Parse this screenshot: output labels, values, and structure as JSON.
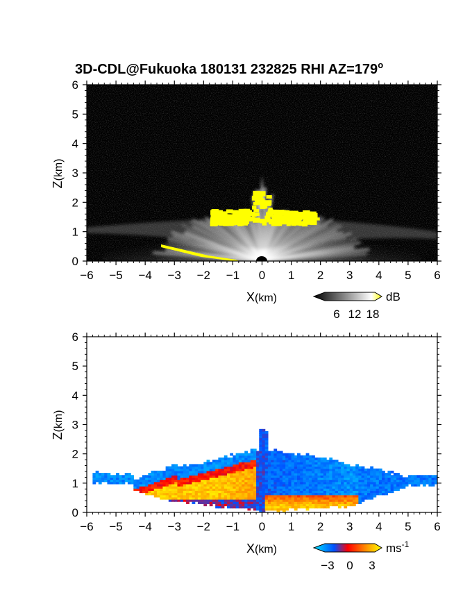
{
  "chart_data": [
    {
      "type": "heatmap",
      "title": "3D-CDL@Fukuoka 180131 232825 RHI AZ=179",
      "title_superscript": "o",
      "xlabel_main": "X",
      "xlabel_unit": "(km)",
      "ylabel_main": "Z",
      "ylabel_unit": "(km)",
      "xlim": [
        -6,
        6
      ],
      "ylim": [
        0,
        6
      ],
      "x_ticks": [
        "-6",
        "-5",
        "-4",
        "-3",
        "-2",
        "-1",
        "0",
        "1",
        "2",
        "3",
        "4",
        "5",
        "6"
      ],
      "y_ticks": [
        "0",
        "1",
        "2",
        "3",
        "4",
        "5",
        "6"
      ],
      "colorbar": {
        "unit": "dB",
        "ticks": [
          "6",
          "12",
          "18"
        ],
        "range": [
          0,
          20
        ],
        "colors": [
          "#000000",
          "#ffffff",
          "#ffff00"
        ]
      },
      "background_color": "#000000"
    },
    {
      "type": "heatmap",
      "xlabel_main": "X",
      "xlabel_unit": "(km)",
      "ylabel_main": "Z",
      "ylabel_unit": "(km)",
      "xlim": [
        -6,
        6
      ],
      "ylim": [
        0,
        6
      ],
      "x_ticks": [
        "-6",
        "-5",
        "-4",
        "-3",
        "-2",
        "-1",
        "0",
        "1",
        "2",
        "3",
        "4",
        "5",
        "6"
      ],
      "y_ticks": [
        "0",
        "1",
        "2",
        "3",
        "4",
        "5",
        "6"
      ],
      "colorbar": {
        "unit_main": "ms",
        "unit_exp": "-1",
        "ticks": [
          "−3",
          "0",
          "3"
        ],
        "range": [
          -4,
          4
        ],
        "colors": [
          "#00e5ff",
          "#0050ff",
          "#ff0000",
          "#ffff00"
        ]
      },
      "background_color": "#ffffff"
    }
  ]
}
